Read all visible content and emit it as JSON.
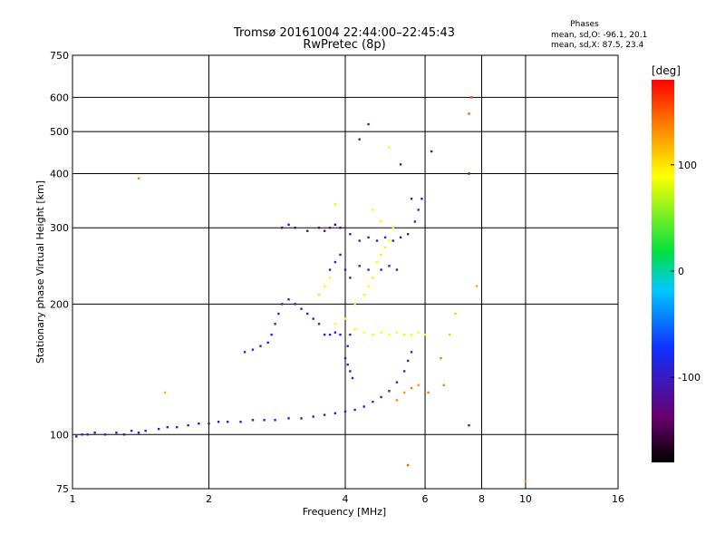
{
  "chart_data": {
    "type": "scatter",
    "title": "Tromsø 20161004 22:44:00–22:45:43",
    "subtitle": "RwPretec (8p)",
    "xlabel": "Frequency [MHz]",
    "ylabel": "Stationary phase Virtual Height [km]",
    "x_scale": "log",
    "y_scale": "log",
    "xlim": [
      1,
      16
    ],
    "ylim": [
      75,
      750
    ],
    "x_ticks": [
      1,
      2,
      4,
      6,
      8,
      10,
      16
    ],
    "x_tick_labels": [
      "1",
      "2",
      "4",
      "6",
      "8",
      "10",
      "16"
    ],
    "y_ticks": [
      75,
      100,
      200,
      300,
      400,
      500,
      600,
      750
    ],
    "y_tick_labels": [
      "75",
      "100",
      "200",
      "300",
      "400",
      "500",
      "600",
      "750"
    ],
    "grid": true,
    "stats": {
      "heading": "Phases",
      "line_o": "mean, sd,O: -96.1, 20.1",
      "line_x": "mean, sd,X:  87.5, 23.4"
    },
    "colorbar": {
      "label": "[deg]",
      "range": [
        -180,
        180
      ],
      "ticks": [
        -100,
        0,
        100
      ],
      "tick_labels": [
        "-100",
        "0",
        "100"
      ],
      "colormap": "rainbow-black-purple-blue-cyan-green-yellow-red"
    },
    "series": [
      {
        "points": [
          [
            1.02,
            99,
            -95
          ],
          [
            1.05,
            100,
            -100
          ],
          [
            1.08,
            100,
            -92
          ],
          [
            1.12,
            101,
            -98
          ],
          [
            1.18,
            100,
            -90
          ],
          [
            1.25,
            101,
            -96
          ],
          [
            1.3,
            100,
            -120
          ],
          [
            1.35,
            102,
            -88
          ],
          [
            1.4,
            101,
            -105
          ],
          [
            1.45,
            102,
            -94
          ],
          [
            1.55,
            103,
            -99
          ],
          [
            1.62,
            104,
            -92
          ],
          [
            1.7,
            104,
            -100
          ],
          [
            1.8,
            105,
            -96
          ],
          [
            1.9,
            106,
            -93
          ],
          [
            2.0,
            106,
            -98
          ],
          [
            2.1,
            107,
            -95
          ],
          [
            2.2,
            107,
            -100
          ],
          [
            2.35,
            107,
            -92
          ],
          [
            2.5,
            108,
            -97
          ],
          [
            2.65,
            108,
            -94
          ],
          [
            2.8,
            108,
            -99
          ],
          [
            3.0,
            109,
            -95
          ],
          [
            3.2,
            109,
            -92
          ],
          [
            3.4,
            110,
            -98
          ],
          [
            3.6,
            111,
            -94
          ],
          [
            3.8,
            112,
            -96
          ],
          [
            4.0,
            113,
            -93
          ],
          [
            4.2,
            114,
            -95
          ],
          [
            4.4,
            116,
            -100
          ],
          [
            4.6,
            119,
            -95
          ],
          [
            4.8,
            122,
            -92
          ],
          [
            5.0,
            126,
            -90
          ],
          [
            5.2,
            132,
            -88
          ],
          [
            5.4,
            140,
            -85
          ],
          [
            5.5,
            148,
            -88
          ],
          [
            5.6,
            155,
            -90
          ],
          [
            2.4,
            155,
            -95
          ],
          [
            2.5,
            157,
            -92
          ],
          [
            2.6,
            160,
            -98
          ],
          [
            2.7,
            163,
            -93
          ],
          [
            2.75,
            170,
            -90
          ],
          [
            2.8,
            180,
            -96
          ],
          [
            2.85,
            190,
            -94
          ],
          [
            2.9,
            200,
            -92
          ],
          [
            3.0,
            205,
            -99
          ],
          [
            3.1,
            200,
            -95
          ],
          [
            3.2,
            195,
            -93
          ],
          [
            3.3,
            190,
            -98
          ],
          [
            3.4,
            185,
            -92
          ],
          [
            3.5,
            180,
            -95
          ],
          [
            3.6,
            170,
            -100
          ],
          [
            3.7,
            170,
            -92
          ],
          [
            3.8,
            172,
            -96
          ],
          [
            3.9,
            170,
            -94
          ],
          [
            2.9,
            300,
            -130
          ],
          [
            3.0,
            305,
            -120
          ],
          [
            3.1,
            300,
            -125
          ],
          [
            3.3,
            295,
            -130
          ],
          [
            3.5,
            300,
            -128
          ],
          [
            3.6,
            295,
            -120
          ],
          [
            3.7,
            300,
            -125
          ],
          [
            3.8,
            305,
            -130
          ],
          [
            3.9,
            300,
            -118
          ],
          [
            4.1,
            290,
            -110
          ],
          [
            4.3,
            280,
            -105
          ],
          [
            4.5,
            285,
            -100
          ],
          [
            4.7,
            280,
            -98
          ],
          [
            4.9,
            285,
            -95
          ],
          [
            5.1,
            280,
            -100
          ],
          [
            5.3,
            285,
            -105
          ],
          [
            5.5,
            290,
            -100
          ],
          [
            5.7,
            310,
            -95
          ],
          [
            5.8,
            330,
            -90
          ],
          [
            5.9,
            350,
            -92
          ],
          [
            3.7,
            240,
            -100
          ],
          [
            3.8,
            250,
            -95
          ],
          [
            3.9,
            260,
            -98
          ],
          [
            4.0,
            240,
            -92
          ],
          [
            4.1,
            230,
            -96
          ],
          [
            4.3,
            245,
            -94
          ],
          [
            4.5,
            240,
            -95
          ],
          [
            4.8,
            240,
            -100
          ],
          [
            5.0,
            245,
            -92
          ],
          [
            5.2,
            240,
            -96
          ],
          [
            4.0,
            150,
            -95
          ],
          [
            4.05,
            145,
            -92
          ],
          [
            4.1,
            140,
            -98
          ],
          [
            4.15,
            135,
            -94
          ],
          [
            4.05,
            160,
            -90
          ],
          [
            4.1,
            170,
            -96
          ],
          [
            4.3,
            480,
            -95
          ],
          [
            4.5,
            520,
            -100
          ],
          [
            5.3,
            420,
            -92
          ],
          [
            5.6,
            350,
            -96
          ],
          [
            6.2,
            450,
            -95
          ],
          [
            7.5,
            400,
            -98
          ],
          [
            3.8,
            180,
            90
          ],
          [
            4.0,
            185,
            88
          ],
          [
            4.2,
            175,
            95
          ],
          [
            4.4,
            172,
            90
          ],
          [
            4.6,
            170,
            85
          ],
          [
            4.8,
            172,
            92
          ],
          [
            5.0,
            170,
            88
          ],
          [
            5.2,
            172,
            90
          ],
          [
            5.4,
            170,
            95
          ],
          [
            5.6,
            170,
            87
          ],
          [
            5.8,
            172,
            90
          ],
          [
            6.0,
            170,
            92
          ],
          [
            4.2,
            200,
            100
          ],
          [
            4.4,
            210,
            95
          ],
          [
            4.5,
            220,
            90
          ],
          [
            4.6,
            230,
            98
          ],
          [
            4.7,
            250,
            92
          ],
          [
            4.8,
            260,
            100
          ],
          [
            4.9,
            270,
            95
          ],
          [
            5.0,
            280,
            90
          ],
          [
            5.1,
            300,
            95
          ],
          [
            3.5,
            210,
            80
          ],
          [
            3.6,
            220,
            85
          ],
          [
            3.7,
            230,
            90
          ],
          [
            3.8,
            340,
            82
          ],
          [
            4.6,
            330,
            88
          ],
          [
            4.8,
            310,
            92
          ],
          [
            5.0,
            460,
            95
          ],
          [
            5.2,
            120,
            135
          ],
          [
            5.4,
            125,
            130
          ],
          [
            5.6,
            128,
            140
          ],
          [
            5.8,
            130,
            130
          ],
          [
            6.1,
            125,
            140
          ],
          [
            6.5,
            150,
            140
          ],
          [
            6.6,
            130,
            135
          ],
          [
            7.5,
            550,
            150
          ],
          [
            7.6,
            600,
            160
          ],
          [
            1.4,
            390,
            140
          ],
          [
            5.5,
            85,
            150
          ],
          [
            10.0,
            78,
            130
          ],
          [
            1.6,
            125,
            120
          ],
          [
            7.5,
            105,
            -100
          ],
          [
            7.8,
            220,
            120
          ],
          [
            6.8,
            170,
            110
          ],
          [
            7.0,
            190,
            110
          ]
        ]
      }
    ]
  }
}
